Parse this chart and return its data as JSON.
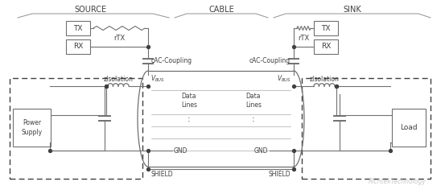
{
  "bg_color": "#ffffff",
  "line_color": "#707070",
  "text_color": "#404040",
  "box_color": "#ffffff",
  "dashed_color": "#404040",
  "gc": "#707070",
  "dc": "#404040",
  "source_label": "SOURCE",
  "cable_label": "CABLE",
  "sink_label": "SINK",
  "tx_label": "TX",
  "rx_label": "RX",
  "rtx_label": "rTX",
  "cac_label": "cAC-Coupling",
  "vbus_label": "V_BUS",
  "ziso_label": "zIsolation",
  "gnd_label": "GND",
  "shield_label": "SHIELD",
  "data_label": "Data\nLines",
  "ps_label": "Power\nSupply",
  "load_label": "Load",
  "watermark": "RichtekTechnology"
}
